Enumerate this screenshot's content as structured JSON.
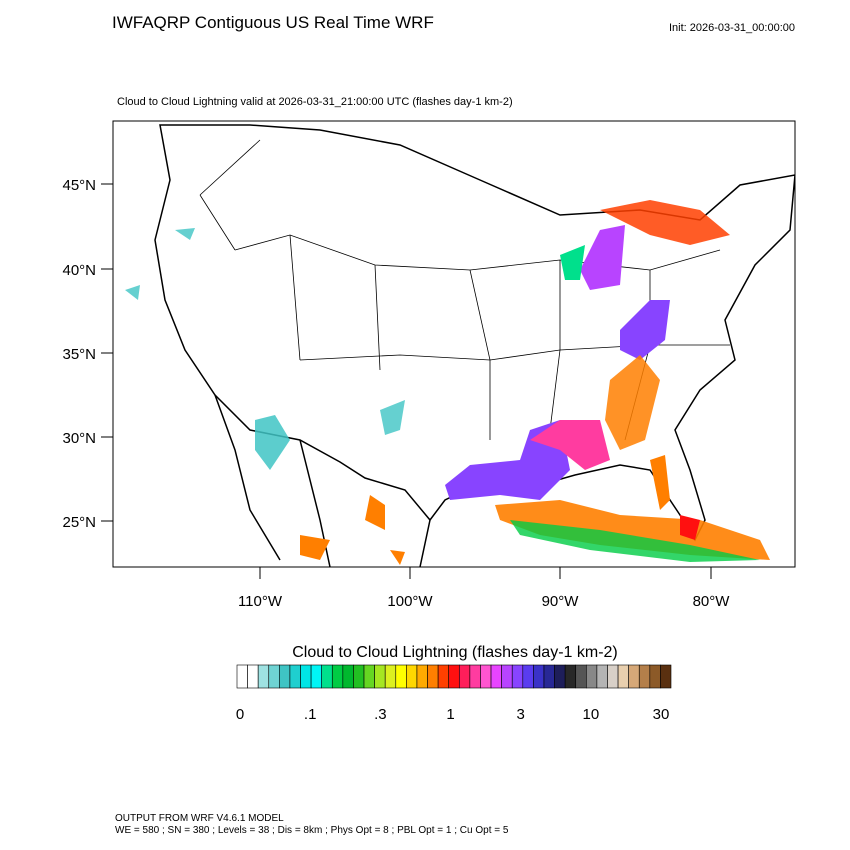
{
  "header": {
    "title": "IWFAQRP Contiguous US Real Time WRF",
    "init": "Init: 2026-03-31_00:00:00"
  },
  "map": {
    "subtitle": "Cloud to Cloud Lightning valid at 2026-03-31_21:00:00 UTC   (flashes day-1 km-2)",
    "lat_labels": [
      "45°N",
      "40°N",
      "35°N",
      "30°N",
      "25°N"
    ],
    "lon_labels": [
      "110°W",
      "100°W",
      "90°W",
      "80°W"
    ]
  },
  "colorbar": {
    "title": "Cloud to Cloud Lightning  (flashes day-1 km-2)",
    "colors": [
      "#ffffff",
      "#ffffff",
      "#9fe2e2",
      "#6fd3d3",
      "#3fc4c4",
      "#1fcfcf",
      "#00e5e5",
      "#00f5f5",
      "#00e08c",
      "#00cc44",
      "#00b82e",
      "#22c022",
      "#66d622",
      "#a6e622",
      "#dcf020",
      "#ffff00",
      "#ffd700",
      "#ffaa00",
      "#ff7f00",
      "#ff4000",
      "#ff1010",
      "#ff1e5a",
      "#ff3ca0",
      "#ff55d0",
      "#e844ff",
      "#b844ff",
      "#8844ff",
      "#5a3cf0",
      "#3a32c8",
      "#282896",
      "#1e1e5a",
      "#282828",
      "#555555",
      "#888888",
      "#b4b4b4",
      "#d8d0c8",
      "#e8cfae",
      "#d6a878",
      "#b47f4a",
      "#8c5a28",
      "#5a3010"
    ],
    "labels": [
      "0",
      ".1",
      ".3",
      "1",
      "3",
      "10",
      "30"
    ]
  },
  "footer": {
    "lines": [
      "OUTPUT FROM WRF V4.6.1 MODEL",
      "WE = 580 ; SN = 380 ; Levels = 38 ; Dis = 8km ; Phys Opt = 8 ; PBL Opt = 1 ; Cu Opt = 5"
    ]
  }
}
